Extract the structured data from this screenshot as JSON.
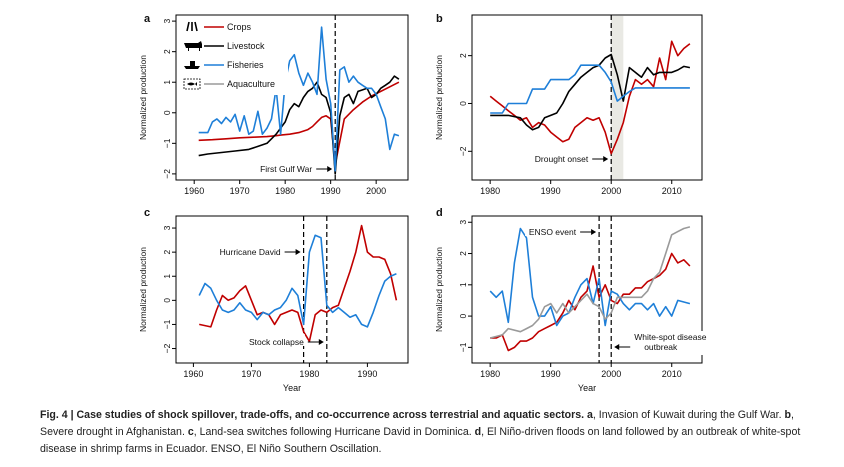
{
  "colors": {
    "crops": "#c00000",
    "livestock": "#000000",
    "fisheries": "#1e7fd8",
    "aquaculture": "#9a9a9a",
    "shade": "#e9e9e4"
  },
  "chart_data": [
    {
      "panel": "a",
      "type": "line",
      "xlabel": "",
      "ylabel": "Normalized production",
      "xlim": [
        1956,
        2007
      ],
      "ylim": [
        -2.2,
        3.2
      ],
      "xticks": [
        1960,
        1970,
        1980,
        1990,
        2000
      ],
      "yticks": [
        -2,
        -1,
        0,
        1,
        2,
        3
      ],
      "legend": [
        "Crops",
        "Livestock",
        "Fisheries",
        "Aquaculture"
      ],
      "legend_icons": [
        "crops-icon",
        "livestock-icon",
        "fisheries-icon",
        "aquaculture-icon"
      ],
      "events": [
        {
          "x": 1991,
          "label": "First Gulf War",
          "arrow": "right"
        }
      ],
      "series": [
        {
          "name": "Crops",
          "x": [
            1961,
            1964,
            1967,
            1970,
            1973,
            1976,
            1978,
            1979,
            1981,
            1983,
            1985,
            1986,
            1987,
            1988,
            1989,
            1990,
            1991,
            1993,
            1995,
            1997,
            1999,
            2001,
            2003,
            2005
          ],
          "y": [
            -0.9,
            -0.88,
            -0.85,
            -0.82,
            -0.8,
            -0.78,
            -0.75,
            -0.73,
            -0.7,
            -0.65,
            -0.55,
            -0.45,
            -0.3,
            -0.15,
            -0.1,
            -0.2,
            -1.7,
            -0.2,
            0.1,
            0.35,
            0.55,
            0.7,
            0.85,
            1.0
          ]
        },
        {
          "name": "Livestock",
          "x": [
            1961,
            1963,
            1966,
            1969,
            1972,
            1974,
            1976,
            1978,
            1980,
            1981,
            1982,
            1983,
            1984,
            1985,
            1986,
            1987,
            1988,
            1989,
            1990,
            1991,
            1992,
            1993,
            1994,
            1995,
            1996,
            1997,
            1998,
            1999,
            2000,
            2001,
            2002,
            2003,
            2004,
            2005
          ],
          "y": [
            -1.4,
            -1.35,
            -1.3,
            -1.25,
            -1.2,
            -1.1,
            -1.0,
            -0.7,
            -0.3,
            0.1,
            0.3,
            0.2,
            0.5,
            0.7,
            0.8,
            1.0,
            0.6,
            0.5,
            0.0,
            -2.0,
            -0.1,
            0.5,
            0.6,
            0.3,
            0.7,
            0.75,
            0.8,
            0.5,
            0.6,
            0.8,
            0.9,
            1.0,
            1.2,
            1.1
          ]
        },
        {
          "name": "Fisheries",
          "x": [
            1961,
            1963,
            1964,
            1965,
            1966,
            1967,
            1968,
            1969,
            1970,
            1971,
            1972,
            1973,
            1974,
            1975,
            1976,
            1977,
            1978,
            1979,
            1980,
            1981,
            1982,
            1983,
            1984,
            1985,
            1986,
            1987,
            1988,
            1989,
            1990,
            1991,
            1992,
            1993,
            1994,
            1995,
            1996,
            1997,
            1998,
            1999,
            2000,
            2001,
            2002,
            2003,
            2004,
            2005
          ],
          "y": [
            -0.65,
            -0.65,
            -0.3,
            -0.2,
            -0.35,
            -0.15,
            -0.3,
            -0.05,
            -0.6,
            -0.1,
            -0.7,
            -0.6,
            0.05,
            -0.7,
            -0.5,
            -0.2,
            0.8,
            -0.7,
            1.0,
            1.7,
            1.9,
            1.3,
            0.9,
            1.3,
            1.0,
            0.6,
            2.8,
            1.1,
            0.3,
            -1.9,
            1.4,
            1.5,
            1.0,
            1.2,
            1.0,
            0.9,
            0.8,
            0.8,
            0.6,
            0.2,
            -0.2,
            -1.2,
            -0.7,
            -0.75
          ]
        },
        {
          "name": "Aquaculture",
          "x": [],
          "y": []
        }
      ]
    },
    {
      "panel": "b",
      "type": "line",
      "xlabel": "",
      "ylabel": "Normalized production",
      "xlim": [
        1977,
        2015
      ],
      "ylim": [
        -3.2,
        3.7
      ],
      "xticks": [
        1980,
        1990,
        2000,
        2010
      ],
      "yticks": [
        -2,
        0,
        2
      ],
      "shaded": [
        2000,
        2002
      ],
      "events": [
        {
          "x": 2000,
          "label": "Drought onset",
          "arrow": "right"
        }
      ],
      "series": [
        {
          "name": "Crops",
          "x": [
            1980,
            1981,
            1982,
            1983,
            1984,
            1985,
            1986,
            1987,
            1988,
            1989,
            1990,
            1991,
            1992,
            1993,
            1994,
            1995,
            1996,
            1997,
            1998,
            1999,
            2000,
            2001,
            2002,
            2003,
            2004,
            2005,
            2006,
            2007,
            2008,
            2009,
            2010,
            2011,
            2012,
            2013
          ],
          "y": [
            0.3,
            0.1,
            -0.1,
            -0.3,
            -0.5,
            -0.7,
            -0.6,
            -1.0,
            -0.8,
            -0.9,
            -1.2,
            -1.4,
            -1.6,
            -1.5,
            -1.0,
            -0.8,
            -0.6,
            -0.7,
            -0.6,
            -1.2,
            -2.1,
            -1.5,
            -0.8,
            0.3,
            1.0,
            0.8,
            1.0,
            0.7,
            1.9,
            1.0,
            2.6,
            2.0,
            2.3,
            2.5
          ]
        },
        {
          "name": "Livestock",
          "x": [
            1980,
            1983,
            1985,
            1986,
            1987,
            1988,
            1989,
            1990,
            1991,
            1992,
            1993,
            1994,
            1995,
            1996,
            1997,
            1998,
            1999,
            2000,
            2001,
            2002,
            2003,
            2004,
            2005,
            2006,
            2007,
            2008,
            2009,
            2010,
            2011,
            2012,
            2013
          ],
          "y": [
            -0.5,
            -0.5,
            -0.6,
            -0.9,
            -1.1,
            -1.0,
            -0.6,
            -0.5,
            -0.4,
            0.0,
            0.5,
            0.8,
            1.1,
            1.3,
            1.5,
            1.6,
            1.9,
            2.05,
            1.2,
            0.1,
            1.5,
            1.3,
            1.1,
            1.5,
            1.2,
            1.3,
            1.3,
            1.3,
            1.4,
            1.55,
            1.5
          ]
        },
        {
          "name": "Fisheries",
          "x": [
            1980,
            1982,
            1983,
            1986,
            1987,
            1989,
            1990,
            1993,
            1994,
            1995,
            1998,
            1999,
            2000,
            2001,
            2002,
            2003,
            2004,
            2005,
            2013
          ],
          "y": [
            -0.4,
            -0.4,
            0.0,
            0.0,
            0.6,
            0.6,
            1.0,
            1.0,
            1.2,
            1.6,
            1.6,
            1.3,
            0.9,
            0.1,
            0.3,
            0.5,
            0.65,
            0.65,
            0.65
          ]
        }
      ]
    },
    {
      "panel": "c",
      "type": "line",
      "xlabel": "Year",
      "ylabel": "Normalized production",
      "xlim": [
        1957,
        1997
      ],
      "ylim": [
        -2.6,
        3.5
      ],
      "xticks": [
        1960,
        1970,
        1980,
        1990
      ],
      "yticks": [
        -2,
        -1,
        0,
        1,
        2,
        3
      ],
      "events": [
        {
          "x": 1979,
          "label": "Hurricane David",
          "arrow": "right"
        },
        {
          "x": 1983,
          "label": "Stock collapse",
          "arrow": "right"
        }
      ],
      "series": [
        {
          "name": "Crops",
          "x": [
            1961,
            1963,
            1964,
            1965,
            1966,
            1967,
            1968,
            1969,
            1970,
            1971,
            1972,
            1973,
            1974,
            1975,
            1976,
            1977,
            1978,
            1979,
            1980,
            1981,
            1982,
            1983,
            1984,
            1985,
            1986,
            1987,
            1988,
            1989,
            1990,
            1991,
            1992,
            1993,
            1994,
            1995
          ],
          "y": [
            -1.0,
            -1.1,
            -0.4,
            0.2,
            0.0,
            0.1,
            0.4,
            0.6,
            0.0,
            -0.6,
            -0.5,
            -0.6,
            -1.0,
            -0.6,
            -0.5,
            -0.4,
            -0.5,
            -1.3,
            -1.7,
            -0.6,
            -0.4,
            -0.5,
            -0.3,
            -0.2,
            0.5,
            1.2,
            2.0,
            3.1,
            2.0,
            1.8,
            1.8,
            1.7,
            1.1,
            0.0
          ]
        },
        {
          "name": "Fisheries",
          "x": [
            1961,
            1962,
            1963,
            1964,
            1965,
            1966,
            1967,
            1968,
            1969,
            1970,
            1971,
            1972,
            1973,
            1974,
            1975,
            1976,
            1977,
            1978,
            1979,
            1980,
            1981,
            1982,
            1983,
            1984,
            1985,
            1986,
            1987,
            1988,
            1989,
            1990,
            1991,
            1992,
            1993,
            1994,
            1995
          ],
          "y": [
            0.2,
            0.7,
            0.5,
            0.0,
            -0.4,
            -0.5,
            -0.4,
            -0.1,
            -0.4,
            -0.5,
            -0.8,
            -0.5,
            -0.6,
            -0.4,
            -0.3,
            0.0,
            0.5,
            0.2,
            -1.0,
            2.0,
            2.7,
            2.6,
            -0.2,
            -0.5,
            -0.3,
            -0.5,
            -0.7,
            -0.6,
            -1.0,
            -1.1,
            -0.5,
            0.2,
            0.8,
            1.0,
            1.1
          ]
        }
      ]
    },
    {
      "panel": "d",
      "type": "line",
      "xlabel": "Year",
      "ylabel": "Normalized production",
      "xlim": [
        1977,
        2015
      ],
      "ylim": [
        -1.5,
        3.2
      ],
      "xticks": [
        1980,
        1990,
        2000,
        2010
      ],
      "yticks": [
        -1,
        0,
        1,
        2,
        3
      ],
      "events": [
        {
          "x": 1998,
          "label": "ENSO event",
          "arrow": "right"
        },
        {
          "x": 2000,
          "label": "White-spot disease outbreak",
          "label_lines": [
            "White-spot disease",
            "outbreak"
          ],
          "arrow": "left"
        }
      ],
      "series": [
        {
          "name": "Crops",
          "x": [
            1980,
            1981,
            1982,
            1983,
            1984,
            1985,
            1986,
            1987,
            1988,
            1989,
            1990,
            1991,
            1992,
            1993,
            1994,
            1995,
            1996,
            1997,
            1998,
            1999,
            2000,
            2001,
            2002,
            2003,
            2004,
            2005,
            2006,
            2007,
            2008,
            2009,
            2010,
            2011,
            2012,
            2013
          ],
          "y": [
            -0.7,
            -0.7,
            -0.6,
            -1.1,
            -1.0,
            -0.8,
            -0.8,
            -0.7,
            -0.5,
            -0.4,
            -0.3,
            -0.2,
            0.1,
            0.5,
            0.2,
            0.6,
            0.8,
            1.6,
            0.6,
            1.0,
            0.5,
            0.4,
            0.7,
            0.7,
            0.9,
            0.9,
            1.1,
            1.2,
            1.3,
            1.5,
            2.0,
            1.7,
            1.8,
            1.6
          ]
        },
        {
          "name": "Fisheries",
          "x": [
            1980,
            1981,
            1982,
            1983,
            1984,
            1985,
            1986,
            1987,
            1988,
            1989,
            1990,
            1991,
            1992,
            1993,
            1994,
            1995,
            1996,
            1997,
            1998,
            1999,
            2000,
            2001,
            2002,
            2003,
            2004,
            2005,
            2006,
            2007,
            2008,
            2009,
            2010,
            2011,
            2012,
            2013
          ],
          "y": [
            0.8,
            0.6,
            0.8,
            -0.2,
            1.7,
            2.8,
            2.5,
            0.6,
            0.0,
            0.0,
            0.3,
            -0.3,
            0.0,
            0.1,
            0.6,
            1.0,
            1.2,
            0.4,
            1.2,
            -0.3,
            0.8,
            0.7,
            0.4,
            0.2,
            0.4,
            0.4,
            0.2,
            0.4,
            0.0,
            0.3,
            0.0,
            0.5,
            0.45,
            0.4
          ]
        },
        {
          "name": "Aquaculture",
          "x": [
            1980,
            1982,
            1983,
            1985,
            1986,
            1987,
            1988,
            1989,
            1990,
            1991,
            1992,
            1993,
            1994,
            1995,
            1996,
            1997,
            1998,
            1999,
            2000,
            2001,
            2002,
            2003,
            2004,
            2005,
            2006,
            2007,
            2008,
            2009,
            2010,
            2011,
            2012,
            2013
          ],
          "y": [
            -0.7,
            -0.6,
            -0.4,
            -0.5,
            -0.4,
            -0.3,
            -0.1,
            0.3,
            0.4,
            0.1,
            0.4,
            0.1,
            0.3,
            0.5,
            0.7,
            0.4,
            0.3,
            -0.1,
            0.1,
            0.6,
            0.6,
            0.6,
            0.6,
            0.6,
            0.8,
            1.2,
            1.4,
            2.0,
            2.6,
            2.7,
            2.8,
            2.85
          ]
        }
      ]
    }
  ],
  "caption": {
    "figure_label": "Fig. 4 |",
    "title": "Case studies of shock spillover, trade-offs, and co-occurrence across terrestrial and aquatic sectors.",
    "parts": [
      {
        "label": "a",
        "text": ", Invasion of Kuwait during the Gulf War."
      },
      {
        "label": "b",
        "text": ", Severe drought in Afghanistan."
      },
      {
        "label": "c",
        "text": ", Land-sea switches following Hurricane David in Dominica."
      },
      {
        "label": "d",
        "text": ", El Niño-driven floods on land followed by an outbreak of white-spot disease in shrimp farms in Ecuador. ENSO, El Niño Southern Oscillation."
      }
    ]
  }
}
